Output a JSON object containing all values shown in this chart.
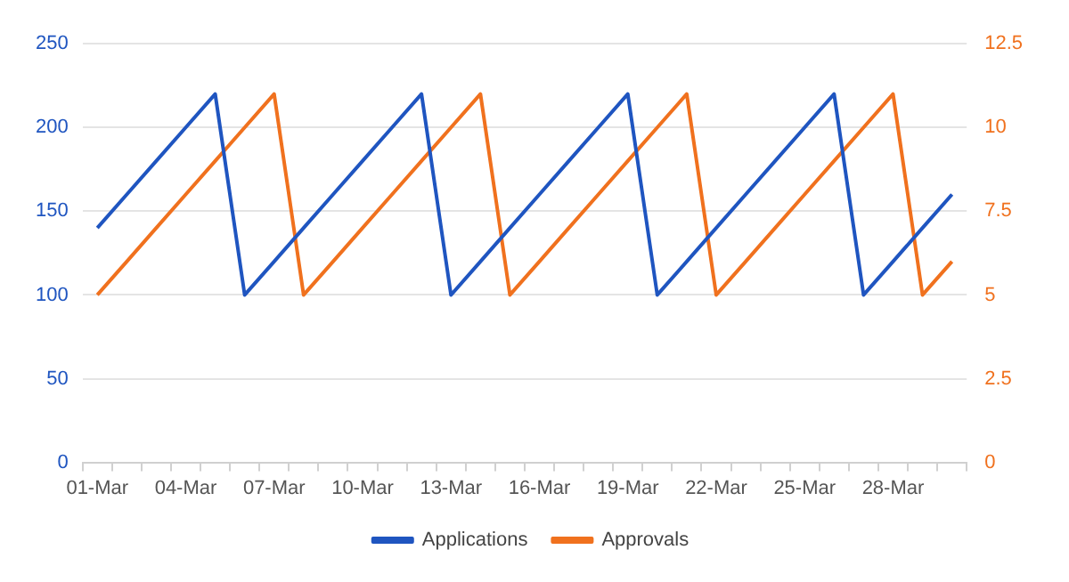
{
  "chart_data": {
    "type": "line",
    "categories": [
      "01-Mar",
      null,
      null,
      "04-Mar",
      null,
      null,
      "07-Mar",
      null,
      null,
      "10-Mar",
      null,
      null,
      "13-Mar",
      null,
      null,
      "16-Mar",
      null,
      null,
      "19-Mar",
      null,
      null,
      "22-Mar",
      null,
      null,
      "25-Mar",
      null,
      null,
      "28-Mar",
      null,
      null
    ],
    "series": [
      {
        "name": "Applications",
        "color": "#1f55c0",
        "values": [
          140,
          160,
          180,
          200,
          220,
          100,
          120,
          140,
          160,
          180,
          200,
          220,
          100,
          120,
          140,
          160,
          180,
          200,
          220,
          100,
          120,
          140,
          160,
          180,
          200,
          220,
          100,
          120,
          140,
          160
        ]
      },
      {
        "name": "Approvals",
        "color": "#f0711e",
        "axis": "y2",
        "values": [
          5,
          6,
          7,
          8,
          9,
          10,
          11,
          5,
          6,
          7,
          8,
          9,
          10,
          11,
          5,
          6,
          7,
          8,
          9,
          10,
          11,
          5,
          6,
          7,
          8,
          9,
          10,
          11,
          5,
          6
        ]
      }
    ],
    "ylim": [
      0,
      250
    ],
    "yticks": [
      0,
      50,
      100,
      150,
      200,
      250
    ],
    "y2lim": [
      0,
      12.5
    ],
    "y2ticks": [
      0,
      2.5,
      5,
      7.5,
      10,
      12.5
    ],
    "grid": "y",
    "legend": "bottom",
    "marker": "none",
    "line_style": "solid"
  }
}
